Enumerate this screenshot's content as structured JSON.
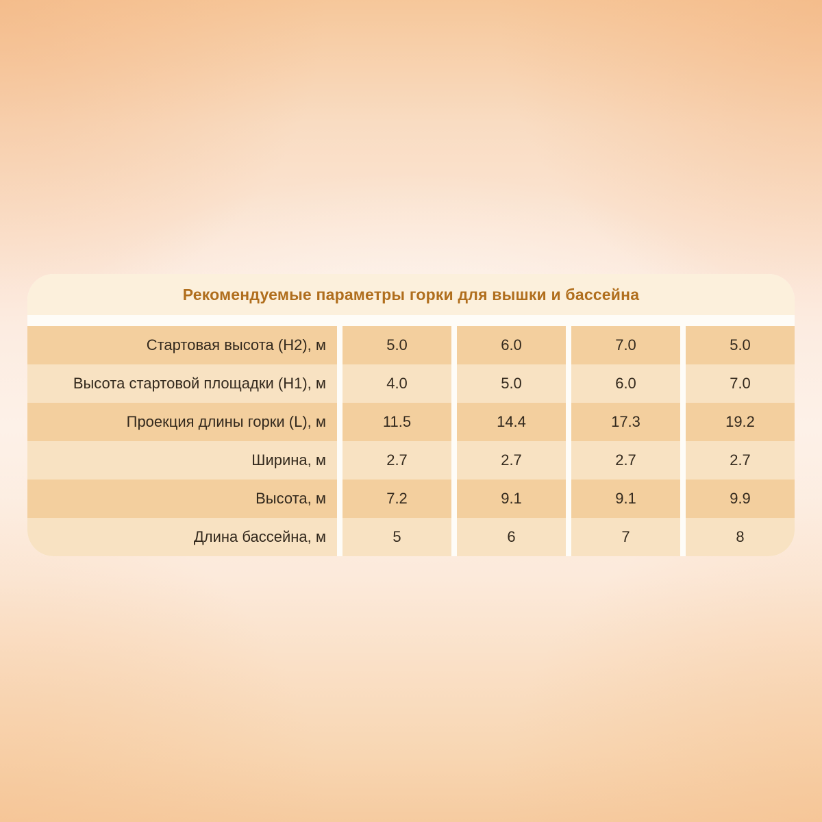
{
  "chart_data": {
    "type": "table",
    "title": "Рекомендуемые параметры горки для вышки и бассейна",
    "rows": [
      {
        "label": "Стартовая высота (H2), м",
        "values": [
          "5.0",
          "6.0",
          "7.0",
          "5.0"
        ]
      },
      {
        "label": "Высота стартовой площадки (H1), м",
        "values": [
          "4.0",
          "5.0",
          "6.0",
          "7.0"
        ]
      },
      {
        "label": "Проекция длины горки (L), м",
        "values": [
          "11.5",
          "14.4",
          "17.3",
          "19.2"
        ]
      },
      {
        "label": "Ширина, м",
        "values": [
          "2.7",
          "2.7",
          "2.7",
          "2.7"
        ]
      },
      {
        "label": "Высота, м",
        "values": [
          "7.2",
          "9.1",
          "9.1",
          "9.9"
        ]
      },
      {
        "label": "Длина бассейна, м",
        "values": [
          "5",
          "6",
          "7",
          "8"
        ]
      }
    ]
  },
  "colors": {
    "title_text": "#b06e1d",
    "cell_text": "#33291d",
    "row_dark": "#f3cf9e",
    "row_light": "#f8e2c2",
    "card_background": "#fefcf7",
    "title_band": "#fcf0dc",
    "page_peach": "#f6c79a"
  }
}
